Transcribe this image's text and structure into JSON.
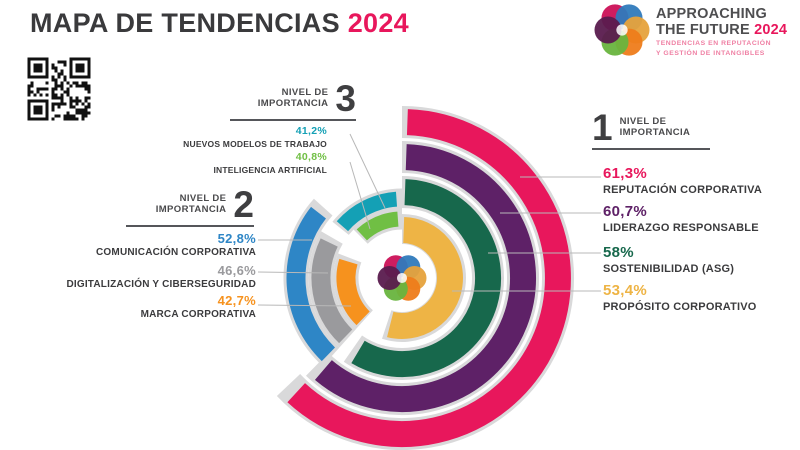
{
  "title": {
    "main": "MAPA DE TENDENCIAS",
    "year": "2024"
  },
  "brand": {
    "line1": "APPROACHING",
    "line2_prefix": "THE FUTURE",
    "line2_year": "2024",
    "subtitle1": "TENDENCIAS EN REPUTACIÓN",
    "subtitle2": "Y GESTIÓN DE INTANGIBLES"
  },
  "colors": {
    "accent": "#e8175c",
    "track": "#d9d9da",
    "leader_line": "#b8b8b8",
    "heading_text": "#3a3a3c"
  },
  "chart_data": {
    "type": "radial-bar",
    "title": "Mapa de tendencias 2024",
    "unit": "percent",
    "encoding": "arc sweep proportional to percentage; one ring per trend, grouped by importance level",
    "legend_position": "labels around chart with leader lines",
    "center_logo_colors": [
      "#cb1157",
      "#2f7abc",
      "#e6a23c",
      "#ee7c1b",
      "#68b43e",
      "#5a1b4e"
    ],
    "groups": [
      {
        "level": 1,
        "header_top": "NIVEL DE",
        "header_bottom": "IMPORTANCIA",
        "number": "1",
        "items": [
          {
            "name": "REPUTACIÓN CORPORATIVA",
            "display": "61,3%",
            "value": 61.3,
            "color": "#e8175c"
          },
          {
            "name": "LIDERAZGO RESPONSABLE",
            "display": "60,7%",
            "value": 60.7,
            "color": "#5e2167"
          },
          {
            "name": "SOSTENIBILIDAD (ASG)",
            "display": "58%",
            "value": 58,
            "color": "#17684c"
          },
          {
            "name": "PROPÓSITO CORPORATIVO",
            "display": "53,4%",
            "value": 53.4,
            "color": "#eeb445"
          }
        ]
      },
      {
        "level": 2,
        "header_top": "NIVEL DE",
        "header_bottom": "IMPORTANCIA",
        "number": "2",
        "items": [
          {
            "name": "COMUNICACIÓN CORPORATIVA",
            "display": "52,8%",
            "value": 52.8,
            "color": "#2e86c6"
          },
          {
            "name": "DIGITALIZACIÓN Y CIBERSEGURIDAD",
            "display": "46,6%",
            "value": 46.6,
            "color": "#9a9a9d"
          },
          {
            "name": "MARCA CORPORATIVA",
            "display": "42,7%",
            "value": 42.7,
            "color": "#f6921e"
          }
        ]
      },
      {
        "level": 3,
        "header_top": "NIVEL DE",
        "header_bottom": "IMPORTANCIA",
        "number": "3",
        "items": [
          {
            "name": "NUEVOS MODELOS DE TRABAJO",
            "display": "41,2%",
            "value": 41.2,
            "color": "#14a0b5"
          },
          {
            "name": "INTELIGENCIA ARTIFICIAL",
            "display": "40,8%",
            "value": 40.8,
            "color": "#70bf44"
          }
        ]
      }
    ]
  }
}
